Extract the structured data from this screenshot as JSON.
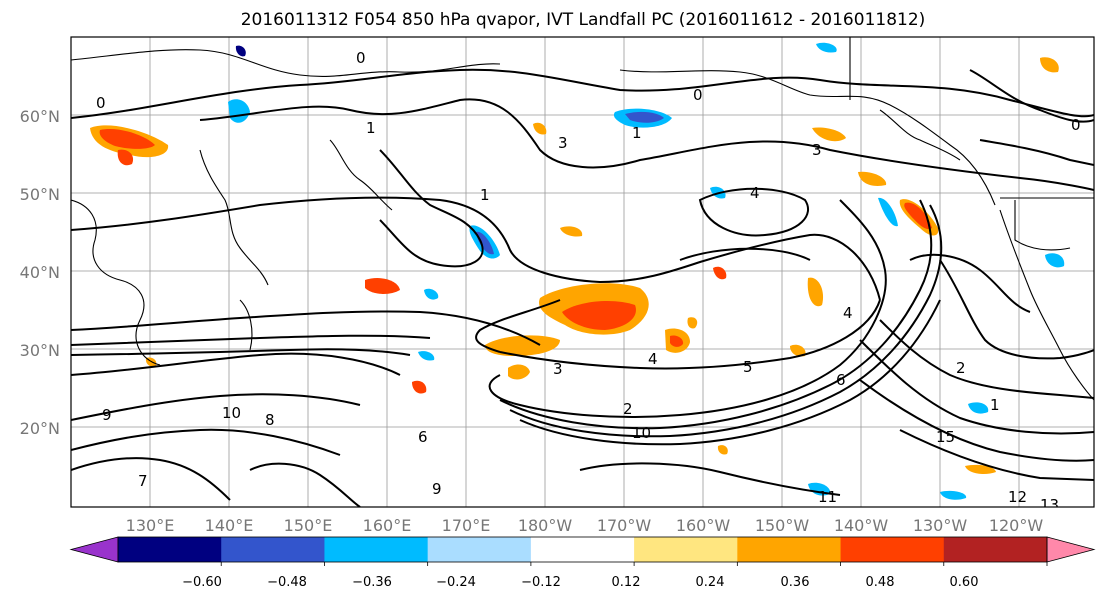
{
  "title": "2016011312 F054 850 hPa qvapor, IVT Landfall PC (2016011612 - 2016011812)",
  "lat_labels": [
    "60°N",
    "50°N",
    "40°N",
    "30°N",
    "20°N"
  ],
  "lon_labels": [
    "130°E",
    "140°E",
    "150°E",
    "160°E",
    "170°E",
    "180°W",
    "170°W",
    "160°W",
    "150°W",
    "140°W",
    "130°W",
    "120°W"
  ],
  "colorbar": {
    "ticks": [
      "−0.60",
      "−0.48",
      "−0.36",
      "−0.24",
      "−0.12",
      "0.12",
      "0.24",
      "0.36",
      "0.48",
      "0.60"
    ],
    "colors": [
      "#9933cc",
      "#000080",
      "#3355cc",
      "#00bbff",
      "#aaddff",
      "#ffffff",
      "#ffe680",
      "#ffa500",
      "#ff4000",
      "#b22222",
      "#ff88aa"
    ]
  },
  "contour_labels": [
    "0",
    "0",
    "0",
    "0",
    "1",
    "1",
    "1",
    "1",
    "2",
    "2",
    "3",
    "3",
    "3",
    "4",
    "4",
    "4",
    "5",
    "6",
    "6",
    "7",
    "8",
    "9",
    "9",
    "10",
    "10",
    "11",
    "12",
    "13",
    "15"
  ]
}
